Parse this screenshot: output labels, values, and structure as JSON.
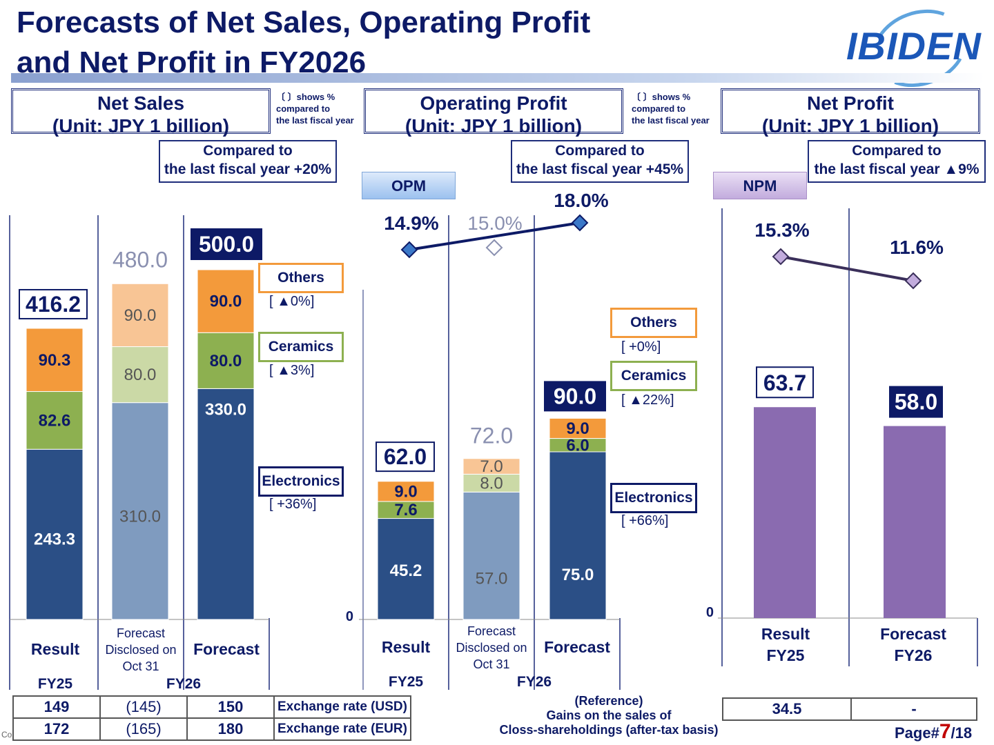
{
  "header": {
    "title_line1": "Forecasts of Net Sales, Operating Profit",
    "title_line2": "and Net Profit in FY2026",
    "logo": "IBIDEN",
    "footer_fragment": "Co"
  },
  "panels": {
    "net_sales": {
      "title": "Net Sales",
      "unit": "(Unit: JPY 1 billion)",
      "cmp_line1": "Compared to",
      "cmp_line2": "the last fiscal year +20%"
    },
    "operating_profit": {
      "title": "Operating Profit",
      "unit": "(Unit: JPY 1 billion)",
      "cmp_line1": "Compared to",
      "cmp_line2": "the last fiscal year +45%",
      "margin_label": "OPM"
    },
    "net_profit": {
      "title": "Net Profit",
      "unit": "(Unit: JPY 1 billion)",
      "cmp_line1": "Compared to",
      "cmp_line2": "the last fiscal year ▲9%",
      "margin_label": "NPM"
    }
  },
  "notes": {
    "line1": "〔 〕shows %",
    "line2": "compared to",
    "line3": "the last fiscal year"
  },
  "legend": {
    "net_sales": {
      "others": "Others",
      "others_pct": "[     ▲0%]",
      "ceramics": "Ceramics",
      "ceramics_pct": "[     ▲3%]",
      "electronics": "Electronics",
      "electronics_pct": "[     +36%]"
    },
    "operating_profit": {
      "others": "Others",
      "others_pct": "[       +0%]",
      "ceramics": "Ceramics",
      "ceramics_pct": "[   ▲22%]",
      "electronics": "Electronics",
      "electronics_pct": "[     +66%]"
    }
  },
  "categories": {
    "result": "Result",
    "forecast_disclosed_l1": "Forecast",
    "forecast_disclosed_l2": "Disclosed on",
    "forecast_disclosed_l3": "Oct 31",
    "forecast": "Forecast",
    "fy25": "FY25",
    "fy26": "FY26",
    "np_result_l1": "Result",
    "np_result_l2": "FY25",
    "np_forecast_l1": "Forecast",
    "np_forecast_l2": "FY26"
  },
  "exchange": {
    "usd": {
      "label": "Exchange rate (USD)",
      "fy25": "149",
      "disclosed": "(145)",
      "forecast": "150"
    },
    "eur": {
      "label": "Exchange rate (EUR)",
      "fy25": "172",
      "disclosed": "(165)",
      "forecast": "180"
    }
  },
  "reference": {
    "line1": "(Reference)",
    "line2": "Gains on the sales of",
    "line3": "Closs-shareholdings (after-tax basis)",
    "fy25": "34.5",
    "fy26": "-"
  },
  "page": {
    "prefix": "Page#",
    "num": "7",
    "suffix": "/18"
  },
  "colors": {
    "electronics": "#2b4f86",
    "ceramics": "#8db050",
    "others": "#f39a3b",
    "disclosed_electronics": "#7f9bbf",
    "disclosed_ceramics": "#cbd9a6",
    "disclosed_others": "#f8c595",
    "net_profit": "#8a6bb0",
    "navy": "#0d1a66",
    "opm_line": "#0d1a66",
    "npm_line": "#3a2f5a"
  },
  "chart_data": [
    {
      "type": "bar",
      "title": "Net Sales",
      "categories": [
        "Result FY25",
        "Forecast Disclosed on Oct 31",
        "Forecast FY26"
      ],
      "series": [
        {
          "name": "Electronics",
          "values": [
            243.3,
            310.0,
            330.0
          ]
        },
        {
          "name": "Ceramics",
          "values": [
            82.6,
            80.0,
            80.0
          ]
        },
        {
          "name": "Others",
          "values": [
            90.3,
            90.0,
            90.0
          ]
        }
      ],
      "totals": [
        416.2,
        480.0,
        500.0
      ]
    },
    {
      "type": "bar",
      "title": "Operating Profit",
      "categories": [
        "Result FY25",
        "Forecast Disclosed on Oct 31",
        "Forecast FY26"
      ],
      "series": [
        {
          "name": "Electronics",
          "values": [
            45.2,
            57.0,
            75.0
          ]
        },
        {
          "name": "Ceramics",
          "values": [
            7.6,
            8.0,
            6.0
          ]
        },
        {
          "name": "Others",
          "values": [
            9.0,
            7.0,
            9.0
          ]
        }
      ],
      "totals": [
        62.0,
        72.0,
        90.0
      ],
      "margin": {
        "name": "OPM",
        "values": [
          14.9,
          15.0,
          18.0
        ],
        "labels": [
          "14.9%",
          "15.0%",
          "18.0%"
        ]
      },
      "zero_label": "0"
    },
    {
      "type": "bar",
      "title": "Net Profit",
      "categories": [
        "Result FY25",
        "Forecast FY26"
      ],
      "values": [
        63.7,
        58.0
      ],
      "totals": [
        63.7,
        58.0
      ],
      "margin": {
        "name": "NPM",
        "values": [
          15.3,
          11.6
        ],
        "labels": [
          "15.3%",
          "11.6%"
        ]
      },
      "zero_label": "0"
    }
  ]
}
